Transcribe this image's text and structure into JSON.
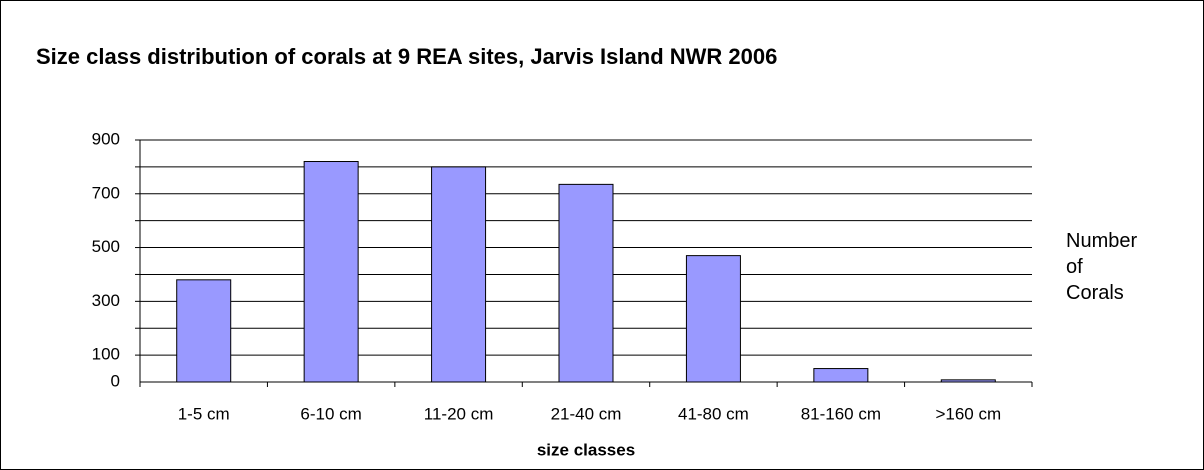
{
  "chart_data": {
    "type": "bar",
    "title": "Size class distribution of corals at 9 REA sites, Jarvis Island NWR 2006",
    "xlabel": "size classes",
    "ylabel": "Number of Corals",
    "categories": [
      "1-5 cm",
      "6-10 cm",
      "11-20 cm",
      "21-40 cm",
      "41-80 cm",
      "81-160 cm",
      ">160 cm"
    ],
    "values": [
      380,
      820,
      800,
      735,
      470,
      50,
      8
    ],
    "color": "#9999ff",
    "ylim": [
      0,
      900
    ],
    "yticks": [
      0,
      100,
      300,
      500,
      700,
      900
    ],
    "ygrid": [
      100,
      200,
      300,
      400,
      500,
      600,
      700,
      800,
      900
    ],
    "grid": true
  }
}
